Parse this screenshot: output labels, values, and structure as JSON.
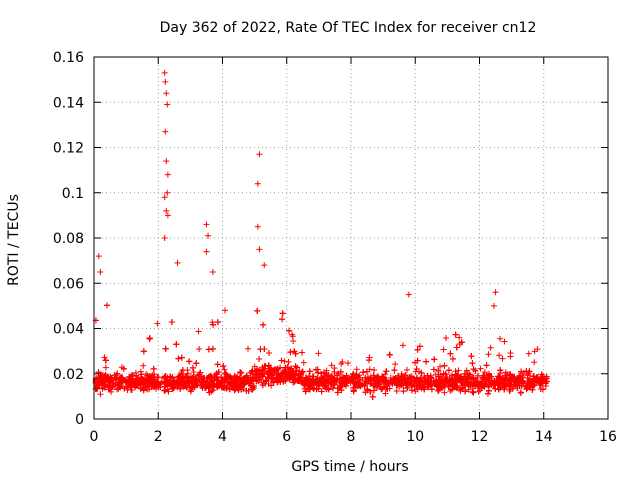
{
  "chart_data": {
    "type": "scatter",
    "title": "Day 362 of 2022, Rate Of TEC Index for receiver cn12",
    "xlabel": "GPS time / hours",
    "ylabel": "ROTI / TECUs",
    "xlim": [
      0,
      16
    ],
    "ylim": [
      0,
      0.16
    ],
    "x_ticks": [
      "0",
      "2",
      "4",
      "6",
      "8",
      "10",
      "12",
      "14",
      "16"
    ],
    "y_ticks": [
      "0",
      "0.02",
      "0.04",
      "0.06",
      "0.08",
      "0.1",
      "0.12",
      "0.14",
      "0.16"
    ],
    "grid": true,
    "marker": "+",
    "series": [
      {
        "name": "ROTI",
        "color": "#ff0000",
        "x_range": [
          0,
          14.1
        ],
        "notable_points": [
          {
            "x": 0.15,
            "y": 0.072
          },
          {
            "x": 0.2,
            "y": 0.065
          },
          {
            "x": 2.2,
            "y": 0.153
          },
          {
            "x": 2.22,
            "y": 0.149
          },
          {
            "x": 2.25,
            "y": 0.144
          },
          {
            "x": 2.28,
            "y": 0.139
          },
          {
            "x": 2.22,
            "y": 0.127
          },
          {
            "x": 2.25,
            "y": 0.114
          },
          {
            "x": 2.3,
            "y": 0.108
          },
          {
            "x": 2.28,
            "y": 0.1
          },
          {
            "x": 2.2,
            "y": 0.098
          },
          {
            "x": 2.25,
            "y": 0.092
          },
          {
            "x": 2.3,
            "y": 0.09
          },
          {
            "x": 2.2,
            "y": 0.08
          },
          {
            "x": 2.6,
            "y": 0.069
          },
          {
            "x": 3.5,
            "y": 0.086
          },
          {
            "x": 3.55,
            "y": 0.081
          },
          {
            "x": 3.5,
            "y": 0.074
          },
          {
            "x": 3.7,
            "y": 0.065
          },
          {
            "x": 5.15,
            "y": 0.117
          },
          {
            "x": 5.1,
            "y": 0.104
          },
          {
            "x": 5.1,
            "y": 0.085
          },
          {
            "x": 5.15,
            "y": 0.075
          },
          {
            "x": 5.3,
            "y": 0.068
          },
          {
            "x": 9.8,
            "y": 0.055
          },
          {
            "x": 12.5,
            "y": 0.056
          },
          {
            "x": 12.45,
            "y": 0.05
          }
        ]
      }
    ]
  }
}
